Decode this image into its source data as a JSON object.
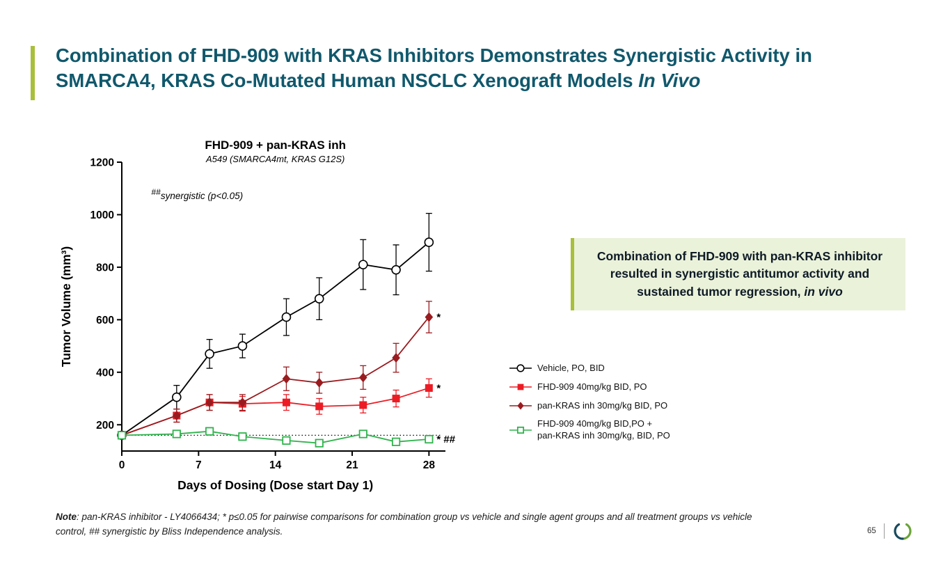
{
  "slide": {
    "title_line1": "Combination of FHD-909 with KRAS Inhibitors Demonstrates Synergistic Activity in",
    "title_line2": "SMARCA4, KRAS Co-Mutated Human NSCLC Xenograft Models",
    "title_line2_italic": "In Vivo"
  },
  "callout": {
    "text_main": "Combination of FHD-909 with pan-KRAS inhibitor resulted in synergistic antitumor activity and sustained tumor regression,",
    "text_italic": "in vivo"
  },
  "note": {
    "label": "Note",
    "text": ": pan-KRAS inhibitor - LY4066434; * p≤0.05 for pairwise comparisons for combination group vs vehicle and single agent groups and all treatment groups vs vehicle control, ## synergistic by Bliss Independence analysis."
  },
  "footer": {
    "page_number": "65"
  },
  "colors": {
    "title": "#10586c",
    "accent_green": "#a8bf3a",
    "callout_bg": "#eaf2da",
    "callout_text": "#0e1a26",
    "chart_title": "#17618f"
  },
  "chart_data": {
    "type": "line",
    "title": "FHD-909 + pan-KRAS inh",
    "subtitle": "A549 (SMARCA4mt, KRAS G12S)",
    "title_color": "#17618f",
    "xlabel": "Days of Dosing (Dose start Day 1)",
    "ylabel": "Tumor Volume (mm³)",
    "xlim": [
      0,
      29.5
    ],
    "ylim": [
      100,
      1200
    ],
    "xticks": [
      0,
      7,
      14,
      21,
      28
    ],
    "yticks": [
      200,
      400,
      600,
      800,
      1000,
      1200
    ],
    "baseline_y": 160,
    "annotation": {
      "sup": "##",
      "text": "synergistic (p<0.05)"
    },
    "x": [
      0,
      5,
      8,
      11,
      15,
      18,
      22,
      25,
      28
    ],
    "series": [
      {
        "id": "vehicle",
        "name": "Vehicle, PO, BID",
        "color": "#000000",
        "marker": "open-circle",
        "values": [
          160,
          305,
          470,
          500,
          610,
          680,
          810,
          790,
          895
        ],
        "errors": [
          12,
          45,
          55,
          45,
          70,
          80,
          95,
          95,
          110
        ],
        "end_label": ""
      },
      {
        "id": "fhd909",
        "name": "FHD-909 40mg/kg BID, PO",
        "color": "#ec1c24",
        "marker": "filled-square",
        "values": [
          160,
          235,
          285,
          280,
          285,
          270,
          275,
          300,
          340
        ],
        "errors": [
          12,
          25,
          30,
          28,
          30,
          30,
          30,
          32,
          35
        ],
        "end_label": "*"
      },
      {
        "id": "pankras",
        "name": "pan-KRAS inh 30mg/kg BID, PO",
        "color": "#9a1b1f",
        "marker": "filled-diamond",
        "values": [
          160,
          235,
          285,
          285,
          375,
          360,
          380,
          455,
          610
        ],
        "errors": [
          12,
          25,
          30,
          30,
          45,
          40,
          45,
          55,
          60
        ],
        "end_label": "*"
      },
      {
        "id": "combo",
        "name": "FHD-909 40mg/kg BID,PO +\npan-KRAS inh 30mg/kg, BID, PO",
        "color": "#2fb34c",
        "marker": "open-square",
        "values": [
          160,
          165,
          175,
          155,
          140,
          130,
          165,
          135,
          145
        ],
        "errors": [
          10,
          12,
          14,
          10,
          10,
          10,
          14,
          10,
          12
        ],
        "end_label": "* ##"
      }
    ]
  }
}
